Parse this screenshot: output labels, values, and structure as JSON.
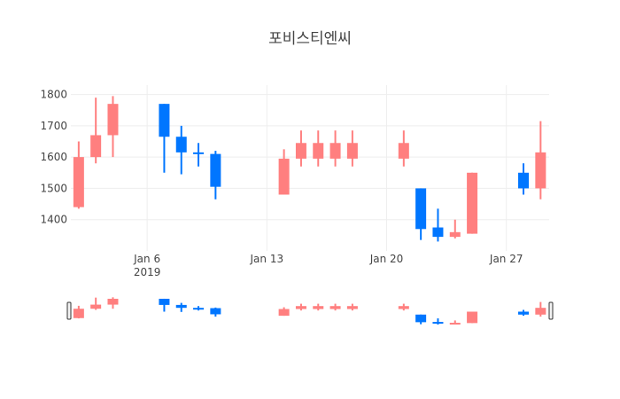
{
  "chart_data": {
    "type": "candlestick",
    "title": "포비스티엔씨",
    "xlabel": "",
    "ylabel": "",
    "x_range": [
      "2019-01-01T13:00",
      "2019-01-29T12:00"
    ],
    "ylim": [
      1300,
      1830
    ],
    "y_ticks": [
      1400,
      1500,
      1600,
      1700,
      1800
    ],
    "x_ticks": [
      {
        "date": "2019-01-06",
        "label": "Jan 6",
        "sublabel": "2019"
      },
      {
        "date": "2019-01-13",
        "label": "Jan 13"
      },
      {
        "date": "2019-01-20",
        "label": "Jan 20"
      },
      {
        "date": "2019-01-27",
        "label": "Jan 27"
      }
    ],
    "grid": true,
    "rangeslider": true,
    "colors": {
      "increasing": "#ff7f7f",
      "decreasing": "#0076ff"
    },
    "candles": [
      {
        "date": "2019-01-02",
        "open": 1440,
        "high": 1650,
        "low": 1435,
        "close": 1600
      },
      {
        "date": "2019-01-03",
        "open": 1600,
        "high": 1790,
        "low": 1580,
        "close": 1670
      },
      {
        "date": "2019-01-04",
        "open": 1670,
        "high": 1795,
        "low": 1600,
        "close": 1770
      },
      {
        "date": "2019-01-07",
        "open": 1770,
        "high": 1770,
        "low": 1550,
        "close": 1665
      },
      {
        "date": "2019-01-08",
        "open": 1665,
        "high": 1700,
        "low": 1545,
        "close": 1615
      },
      {
        "date": "2019-01-09",
        "open": 1615,
        "high": 1645,
        "low": 1570,
        "close": 1610
      },
      {
        "date": "2019-01-10",
        "open": 1610,
        "high": 1620,
        "low": 1465,
        "close": 1505
      },
      {
        "date": "2019-01-14",
        "open": 1480,
        "high": 1625,
        "low": 1480,
        "close": 1595
      },
      {
        "date": "2019-01-15",
        "open": 1595,
        "high": 1685,
        "low": 1570,
        "close": 1645
      },
      {
        "date": "2019-01-16",
        "open": 1595,
        "high": 1685,
        "low": 1570,
        "close": 1645
      },
      {
        "date": "2019-01-17",
        "open": 1595,
        "high": 1685,
        "low": 1570,
        "close": 1645
      },
      {
        "date": "2019-01-18",
        "open": 1595,
        "high": 1685,
        "low": 1570,
        "close": 1645
      },
      {
        "date": "2019-01-21",
        "open": 1595,
        "high": 1685,
        "low": 1570,
        "close": 1645
      },
      {
        "date": "2019-01-22",
        "open": 1500,
        "high": 1500,
        "low": 1335,
        "close": 1370
      },
      {
        "date": "2019-01-23",
        "open": 1375,
        "high": 1435,
        "low": 1330,
        "close": 1345
      },
      {
        "date": "2019-01-24",
        "open": 1345,
        "high": 1400,
        "low": 1340,
        "close": 1360
      },
      {
        "date": "2019-01-25",
        "open": 1355,
        "high": 1550,
        "low": 1355,
        "close": 1550
      },
      {
        "date": "2019-01-28",
        "open": 1550,
        "high": 1580,
        "low": 1480,
        "close": 1500
      },
      {
        "date": "2019-01-29",
        "open": 1500,
        "high": 1715,
        "low": 1465,
        "close": 1615
      }
    ]
  }
}
